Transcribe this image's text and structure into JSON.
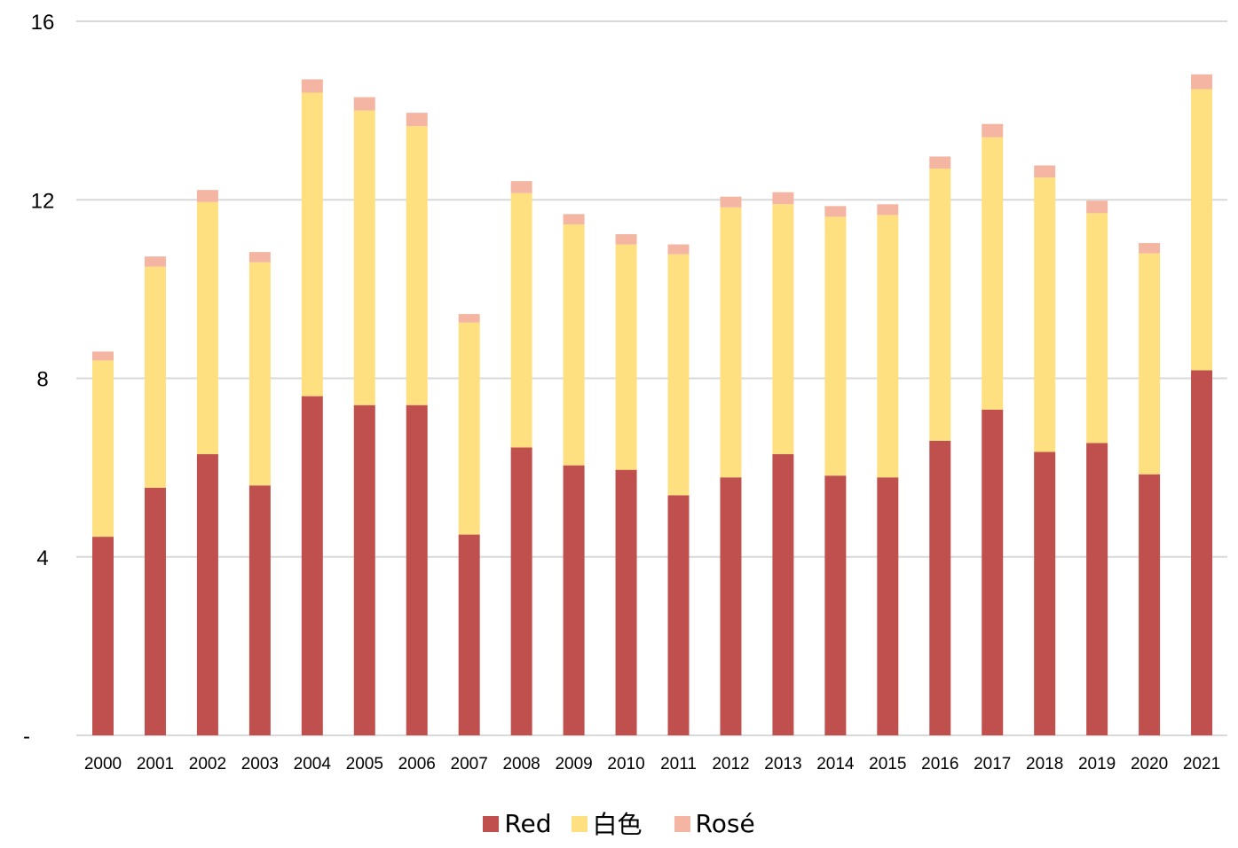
{
  "chart_data": {
    "type": "bar",
    "stacked": true,
    "title": "",
    "xlabel": "",
    "ylabel": "",
    "ylim": [
      0,
      16
    ],
    "y_ticks": [
      {
        "value": 0,
        "label": "-"
      },
      {
        "value": 4,
        "label": "4"
      },
      {
        "value": 8,
        "label": "8"
      },
      {
        "value": 12,
        "label": "12"
      },
      {
        "value": 16,
        "label": "16"
      }
    ],
    "grid": true,
    "legend_position": "bottom",
    "categories": [
      "2000",
      "2001",
      "2002",
      "2003",
      "2004",
      "2005",
      "2006",
      "2007",
      "2008",
      "2009",
      "2010",
      "2011",
      "2012",
      "2013",
      "2014",
      "2015",
      "2016",
      "2017",
      "2018",
      "2019",
      "2020",
      "2021"
    ],
    "series": [
      {
        "name": "Red",
        "color": "#C0504D",
        "values": [
          4.45,
          5.55,
          6.3,
          5.6,
          7.6,
          7.4,
          7.4,
          4.5,
          6.45,
          6.05,
          5.95,
          5.38,
          5.78,
          6.3,
          5.82,
          5.78,
          6.6,
          7.3,
          6.35,
          6.55,
          5.85,
          8.18
        ]
      },
      {
        "name": "白色",
        "color": "#FFE080",
        "values": [
          3.95,
          4.95,
          5.65,
          5.0,
          6.8,
          6.6,
          6.25,
          4.75,
          5.7,
          5.4,
          5.05,
          5.4,
          6.05,
          5.6,
          5.8,
          5.88,
          6.1,
          6.1,
          6.15,
          5.15,
          4.95,
          6.3
        ]
      },
      {
        "name": "Rosé",
        "color": "#F4B6A2",
        "values": [
          0.2,
          0.23,
          0.27,
          0.23,
          0.3,
          0.3,
          0.3,
          0.19,
          0.27,
          0.23,
          0.23,
          0.22,
          0.24,
          0.27,
          0.24,
          0.24,
          0.27,
          0.3,
          0.27,
          0.28,
          0.23,
          0.33
        ]
      }
    ]
  }
}
